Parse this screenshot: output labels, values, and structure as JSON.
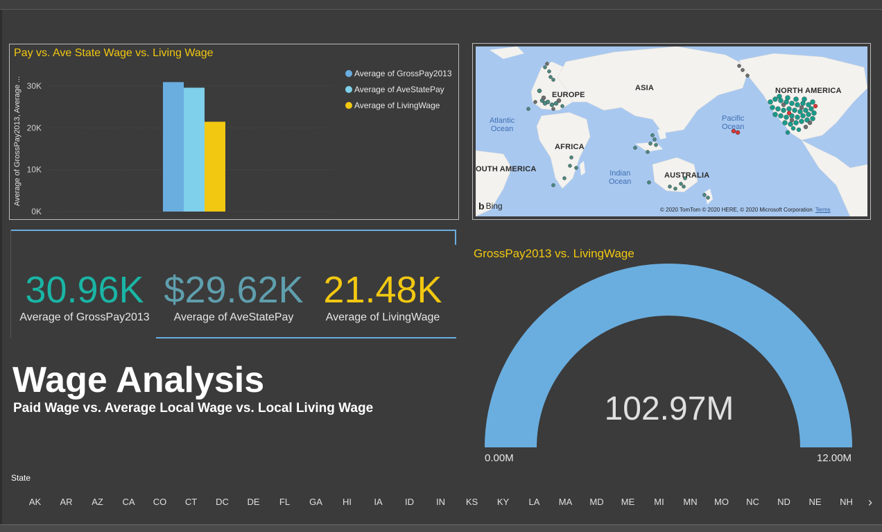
{
  "bar_chart": {
    "title": "Pay vs. Ave State Wage vs. Living Wage",
    "ylabel": "Average of GrossPay2013, Average ...",
    "colors": [
      "#6aaee0",
      "#7fd0ea",
      "#f2c811"
    ],
    "legend": [
      {
        "label": "Average of GrossPay2013",
        "color": "#6aaee0"
      },
      {
        "label": "Average of AveStatePay",
        "color": "#7fd0ea"
      },
      {
        "label": "Average of LivingWage",
        "color": "#f2c811"
      }
    ]
  },
  "chart_data": [
    {
      "type": "bar",
      "title": "Pay vs. Ave State Wage vs. Living Wage",
      "xlabel": "",
      "ylabel": "Average of GrossPay2013, Average ...",
      "ylim": [
        0,
        35000
      ],
      "yticks": [
        0,
        10000,
        20000,
        30000
      ],
      "ytick_labels": [
        "0K",
        "10K",
        "20K",
        "30K"
      ],
      "grid": true,
      "legend_position": "top-right",
      "categories": [
        ""
      ],
      "series": [
        {
          "name": "Average of GrossPay2013",
          "values": [
            30960
          ]
        },
        {
          "name": "Average of AveStatePay",
          "values": [
            29620
          ]
        },
        {
          "name": "Average of LivingWage",
          "values": [
            21480
          ]
        }
      ]
    }
  ],
  "map": {
    "labels": {
      "europe": "EUROPE",
      "asia": "ASIA",
      "north_america": "NORTH AMERICA",
      "africa": "AFRICA",
      "south_america": "OUTH AMERICA",
      "australia": "AUSTRALIA"
    },
    "oceans": {
      "atlantic_1": "Atlantic",
      "atlantic_2": "Ocean",
      "pacific_1": "Pacific",
      "pacific_2": "Ocean",
      "indian_1": "Indian",
      "indian_2": "Ocean"
    },
    "bing": "Bing",
    "copyright": "© 2020 TomTom © 2020 HERE, © 2020 Microsoft Corporation",
    "terms": "Terms"
  },
  "cards": [
    {
      "value": "30.96K",
      "label": "Average of GrossPay2013",
      "color": "#1ab5a5"
    },
    {
      "value": "$29.62K",
      "label": "Average of AveStatePay",
      "color": "#5f9fae"
    },
    {
      "value": "21.48K",
      "label": "Average of LivingWage",
      "color": "#f2c811"
    }
  ],
  "heading": {
    "title": "Wage Analysis",
    "subtitle": "Paid Wage vs. Average Local Wage vs. Local Living Wage"
  },
  "gauge": {
    "title": "GrossPay2013 vs. LivingWage",
    "value_label": "102.97M",
    "min_label": "0.00M",
    "max_label": "12.00M",
    "fill_fraction": 1.0,
    "color": "#6aaee0"
  },
  "slicer": {
    "title": "State",
    "items": [
      "AK",
      "AR",
      "AZ",
      "CA",
      "CO",
      "CT",
      "DC",
      "DE",
      "FL",
      "GA",
      "HI",
      "IA",
      "ID",
      "IN",
      "KS",
      "KY",
      "LA",
      "MA",
      "MD",
      "ME",
      "MI",
      "MN",
      "MO",
      "NC",
      "ND",
      "NE",
      "NH"
    ],
    "next_icon": "chevron-right-icon",
    "next_glyph": "›"
  }
}
